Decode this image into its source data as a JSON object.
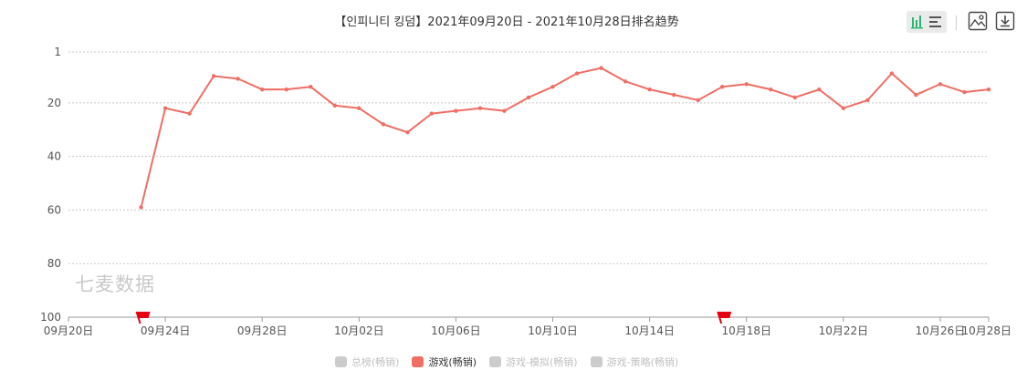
{
  "chart_data": {
    "type": "line",
    "title": "【인피니티 킹덤】2021年09月20日 - 2021年10月28日排名趋势",
    "y_reversed": true,
    "ylim": [
      1,
      100
    ],
    "y_ticks": [
      1,
      20,
      40,
      60,
      80,
      100
    ],
    "x_range": [
      "09月20日",
      "10月28日"
    ],
    "x_ticks": [
      "09月20日",
      "09月24日",
      "09月28日",
      "10月02日",
      "10月06日",
      "10月10日",
      "10月14日",
      "10月18日",
      "10月22日",
      "10月26日",
      "10月28日"
    ],
    "grid": true,
    "legend_position": "bottom",
    "series": [
      {
        "name": "游戏(畅销)",
        "color": "#ef6e65",
        "x": [
          "09月23日",
          "09月24日",
          "09月25日",
          "09月26日",
          "09月27日",
          "09月28日",
          "09月29日",
          "09月30日",
          "10月01日",
          "10月02日",
          "10月03日",
          "10月04日",
          "10月05日",
          "10月06日",
          "10月07日",
          "10月08日",
          "10月09日",
          "10月10日",
          "10月11日",
          "10月12日",
          "10月13日",
          "10月14日",
          "10月15日",
          "10月16日",
          "10月17日",
          "10月18日",
          "10月19日",
          "10月20日",
          "10月21日",
          "10月22日",
          "10月23日",
          "10月24日",
          "10月25日",
          "10月26日",
          "10月27日",
          "10月28日"
        ],
        "values": [
          59,
          22,
          24,
          10,
          11,
          15,
          15,
          14,
          21,
          22,
          28,
          31,
          24,
          23,
          22,
          23,
          18,
          14,
          9,
          7,
          12,
          15,
          17,
          19,
          14,
          13,
          15,
          18,
          15,
          22,
          19,
          9,
          17,
          13,
          16,
          15
        ]
      }
    ],
    "markers": [
      {
        "type": "flag",
        "date": "09月23日",
        "color": "#e60012"
      },
      {
        "type": "flag",
        "date": "10月17日",
        "color": "#e60012"
      }
    ]
  },
  "legend": [
    {
      "label": "总榜(畅销)",
      "color": "#cccccc",
      "active": false
    },
    {
      "label": "游戏(畅销)",
      "color": "#ef6e65",
      "active": true
    },
    {
      "label": "游戏-模拟(畅销)",
      "color": "#cccccc",
      "active": false
    },
    {
      "label": "游戏-策略(畅销)",
      "color": "#cccccc",
      "active": false
    }
  ],
  "watermark": "七麦数据",
  "toolbar": {
    "icons": [
      "bar-chart-icon",
      "list-icon",
      "image-icon",
      "download-icon"
    ]
  }
}
